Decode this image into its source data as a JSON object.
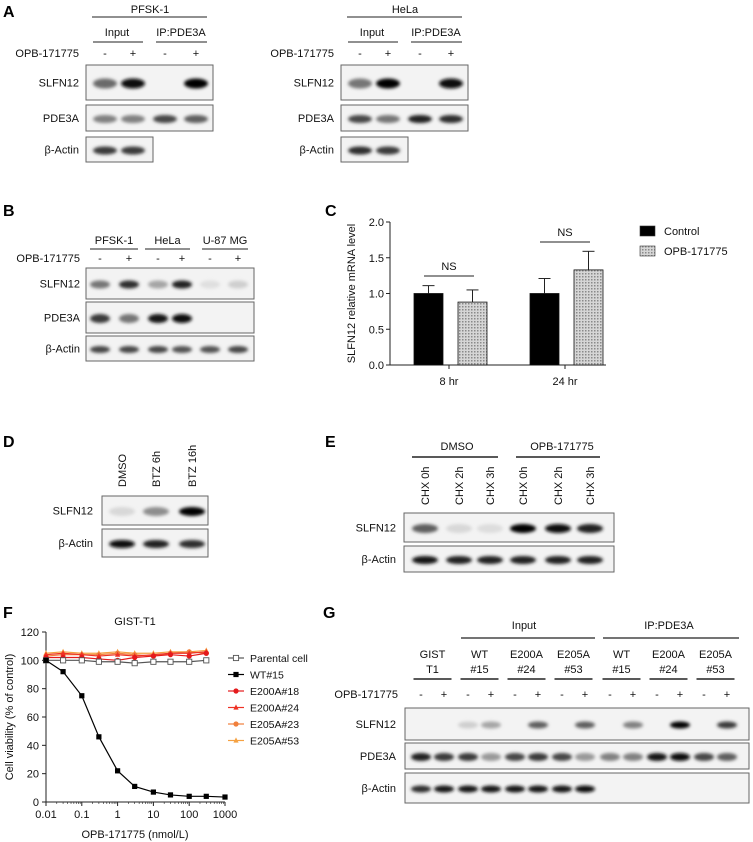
{
  "panel_labels": {
    "A": "A",
    "B": "B",
    "C": "C",
    "D": "D",
    "E": "E",
    "F": "F",
    "G": "G"
  },
  "common": {
    "drug": "OPB-171775",
    "minus": "-",
    "plus": "+"
  },
  "panel_a": {
    "blots": [
      {
        "cell_line": "PFSK-1",
        "groups": [
          "Input",
          "IP:PDE3A"
        ],
        "treatment": [
          "-",
          "+",
          "-",
          "+"
        ],
        "rows": [
          {
            "label": "SLFN12",
            "intensities": [
              0.55,
              0.95,
              0.0,
              1.0
            ]
          },
          {
            "label": "PDE3A",
            "intensities": [
              0.45,
              0.45,
              0.7,
              0.6
            ]
          },
          {
            "label": "β-Actin",
            "intensities": [
              0.75,
              0.75
            ]
          }
        ]
      },
      {
        "cell_line": "HeLa",
        "groups": [
          "Input",
          "IP:PDE3A"
        ],
        "treatment": [
          "-",
          "+",
          "-",
          "+"
        ],
        "rows": [
          {
            "label": "SLFN12",
            "intensities": [
              0.5,
              1.0,
              0.0,
              0.95
            ]
          },
          {
            "label": "PDE3A",
            "intensities": [
              0.7,
              0.5,
              0.85,
              0.8
            ]
          },
          {
            "label": "β-Actin",
            "intensities": [
              0.8,
              0.75
            ]
          }
        ]
      }
    ]
  },
  "panel_b": {
    "cell_lines": [
      "PFSK-1",
      "HeLa",
      "U-87 MG"
    ],
    "treatment": [
      "-",
      "+",
      "-",
      "+",
      "-",
      "+"
    ],
    "rows": [
      {
        "label": "SLFN12",
        "intensities": [
          0.5,
          0.8,
          0.3,
          0.85,
          0.05,
          0.12
        ]
      },
      {
        "label": "PDE3A",
        "intensities": [
          0.75,
          0.5,
          0.9,
          0.95,
          0.0,
          0.0
        ]
      },
      {
        "label": "β-Actin",
        "intensities": [
          0.7,
          0.7,
          0.7,
          0.65,
          0.65,
          0.7
        ]
      }
    ]
  },
  "chart_data": {
    "type": "bar",
    "title": "",
    "xlabel": "",
    "ylabel": "SLFN12 relative mRNA level",
    "categories": [
      "8 hr",
      "24 hr"
    ],
    "series": [
      {
        "name": "Control",
        "values": [
          1.0,
          1.0
        ],
        "errors": [
          0.11,
          0.21
        ],
        "color": "#000000"
      },
      {
        "name": "OPB-171775",
        "values": [
          0.88,
          1.33
        ],
        "errors": [
          0.17,
          0.26
        ],
        "color": "#bdbdbd",
        "pattern": "dotted"
      }
    ],
    "annotations": [
      "NS",
      "NS"
    ],
    "ylim": [
      0,
      2.0
    ],
    "yticks": [
      "0.0",
      "0.5",
      "1.0",
      "1.5",
      "2.0"
    ],
    "legend_position": "right",
    "grid": false
  },
  "panel_d": {
    "lanes": [
      "DMSO",
      "BTZ 6h",
      "BTZ 16h"
    ],
    "rows": [
      {
        "label": "SLFN12",
        "intensities": [
          0.08,
          0.4,
          1.0
        ]
      },
      {
        "label": "β-Actin",
        "intensities": [
          0.95,
          0.85,
          0.8
        ]
      }
    ]
  },
  "panel_e": {
    "groups": [
      "DMSO",
      "OPB-171775"
    ],
    "lanes": [
      "CHX 0h",
      "CHX 2h",
      "CHX 3h",
      "CHX 0h",
      "CHX 2h",
      "CHX 3h"
    ],
    "rows": [
      {
        "label": "SLFN12",
        "intensities": [
          0.6,
          0.08,
          0.06,
          1.0,
          0.95,
          0.85
        ]
      },
      {
        "label": "β-Actin",
        "intensities": [
          0.9,
          0.85,
          0.85,
          0.85,
          0.85,
          0.85
        ]
      }
    ]
  },
  "panel_f": {
    "type": "line",
    "title": "GIST-T1",
    "xlabel": "OPB-171775 (nmol/L)",
    "ylabel": "Cell viability (% of control)",
    "xscale": "log",
    "xticks": [
      "0.01",
      "0.1",
      "1",
      "10",
      "100",
      "1000"
    ],
    "yticks": [
      "0",
      "20",
      "40",
      "60",
      "80",
      "100",
      "120"
    ],
    "ylim": [
      0,
      120
    ],
    "x": [
      0.01,
      0.03,
      0.1,
      0.3,
      1,
      3,
      10,
      30,
      100,
      300,
      1000
    ],
    "series": [
      {
        "name": "Parental cell",
        "color": "#555555",
        "marker": "open-square",
        "values": [
          100,
          100,
          100,
          99,
          99,
          98,
          99,
          99,
          99,
          100,
          null
        ]
      },
      {
        "name": "WT#15",
        "color": "#000000",
        "marker": "square",
        "values": [
          100,
          92,
          75,
          46,
          22,
          11,
          7,
          5,
          4,
          4,
          3.5
        ]
      },
      {
        "name": "E200A#18",
        "color": "#e41a1c",
        "marker": "circle",
        "values": [
          102,
          102,
          102,
          101,
          100,
          102,
          103,
          104,
          103,
          105,
          null
        ]
      },
      {
        "name": "E200A#24",
        "color": "#ee3124",
        "marker": "triangle",
        "values": [
          104,
          105,
          104,
          103,
          104,
          103,
          104,
          105,
          105,
          106,
          null
        ]
      },
      {
        "name": "E205A#23",
        "color": "#f07f3c",
        "marker": "circle",
        "values": [
          103,
          104,
          104,
          104,
          105,
          104,
          103,
          105,
          106,
          105,
          null
        ]
      },
      {
        "name": "E205A#53",
        "color": "#f5a142",
        "marker": "triangle",
        "values": [
          105,
          106,
          105,
          105,
          106,
          105,
          105,
          106,
          106,
          107,
          null
        ]
      }
    ]
  },
  "panel_g": {
    "groups": [
      "Input",
      "IP:PDE3A"
    ],
    "samples": [
      {
        "line1": "GIST",
        "line2": "T1"
      },
      {
        "line1": "WT",
        "line2": "#15"
      },
      {
        "line1": "E200A",
        "line2": "#24"
      },
      {
        "line1": "E205A",
        "line2": "#53"
      },
      {
        "line1": "WT",
        "line2": "#15"
      },
      {
        "line1": "E200A",
        "line2": "#24"
      },
      {
        "line1": "E205A",
        "line2": "#53"
      }
    ],
    "rows": [
      {
        "label": "SLFN12",
        "intensities": [
          0,
          0,
          0.12,
          0.3,
          0,
          0.6,
          0,
          0.6,
          0,
          0.45,
          0,
          1.0,
          0,
          0.75
        ]
      },
      {
        "label": "PDE3A",
        "intensities": [
          0.85,
          0.75,
          0.75,
          0.35,
          0.7,
          0.75,
          0.7,
          0.35,
          0.45,
          0.45,
          0.9,
          0.95,
          0.7,
          0.6
        ]
      },
      {
        "label": "β-Actin",
        "intensities": [
          0.8,
          0.9,
          0.9,
          0.9,
          0.9,
          0.9,
          0.9,
          0.95
        ]
      }
    ]
  }
}
